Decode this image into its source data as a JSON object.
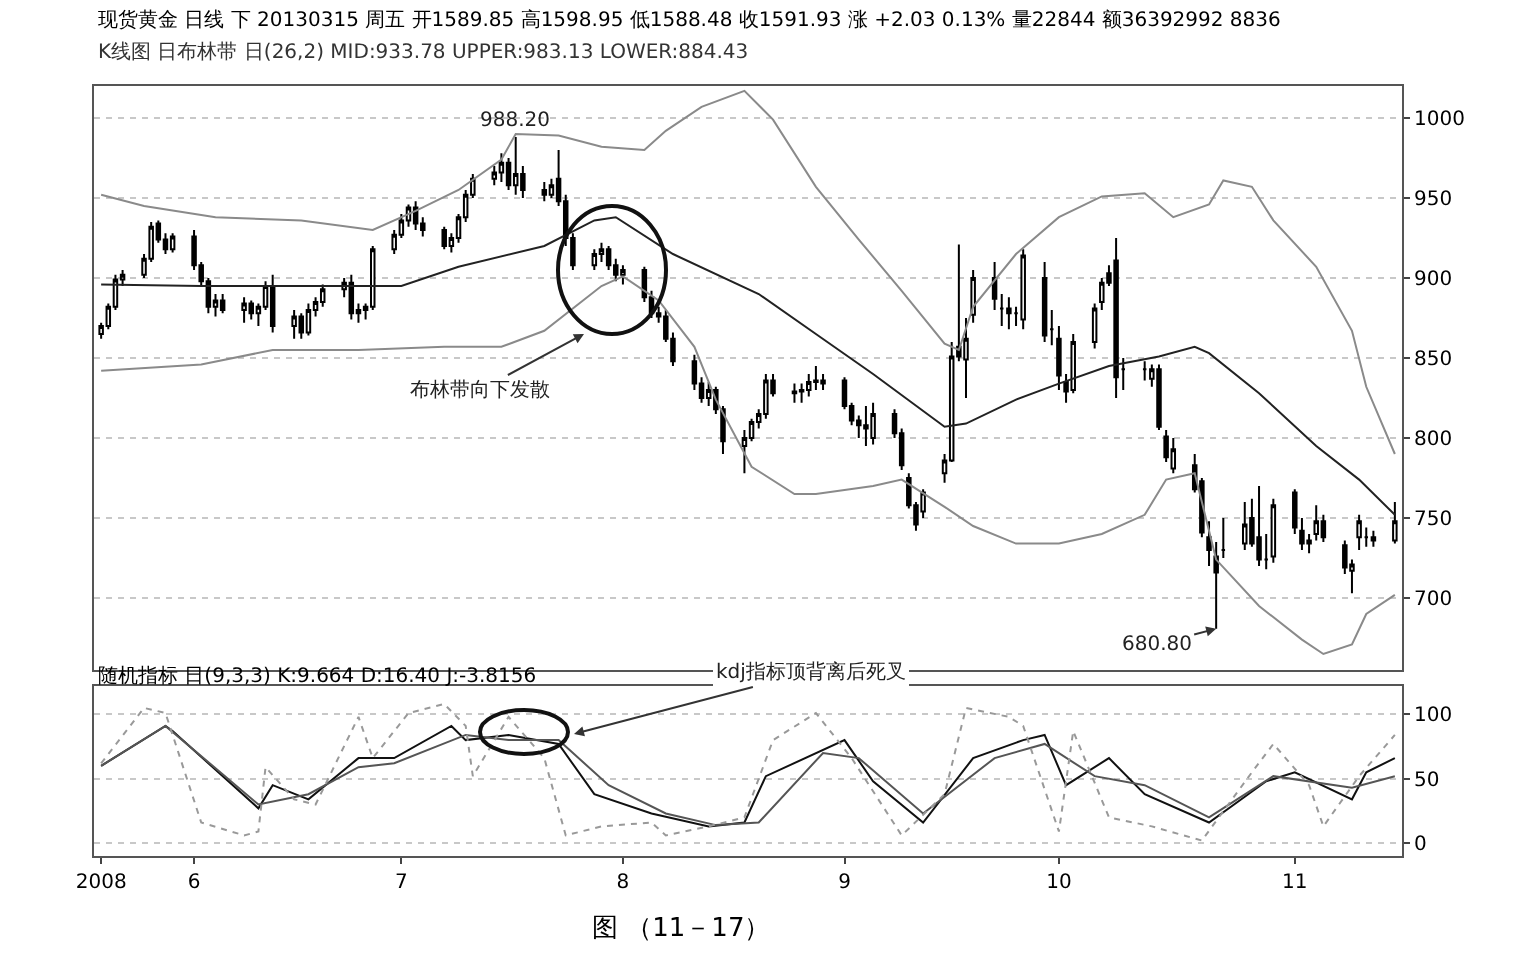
{
  "chart_data": [
    {
      "type": "candlestick",
      "title": "现货黄金 日线 下 20130315 周五 开1589.85 高1598.95 低1588.48 收1591.93 涨 +2.03 0.13% 量22844 额36392992 8836",
      "subtitle": "K线图 日布林带 日(26,2) MID:933.78 UPPER:983.13 LOWER:884.43",
      "x": [
        "2008-05-20",
        "2008-05-21",
        "2008-05-22",
        "2008-05-23",
        "2008-05-26",
        "2008-05-27",
        "2008-05-28",
        "2008-05-29",
        "2008-05-30",
        "2008-06-02",
        "2008-06-03",
        "2008-06-04",
        "2008-06-05",
        "2008-06-06",
        "2008-06-09",
        "2008-06-10",
        "2008-06-11",
        "2008-06-12",
        "2008-06-13",
        "2008-06-16",
        "2008-06-17",
        "2008-06-18",
        "2008-06-19",
        "2008-06-20",
        "2008-06-23",
        "2008-06-24",
        "2008-06-25",
        "2008-06-26",
        "2008-06-27",
        "2008-06-30",
        "2008-07-01",
        "2008-07-02",
        "2008-07-03",
        "2008-07-04",
        "2008-07-07",
        "2008-07-08",
        "2008-07-09",
        "2008-07-10",
        "2008-07-11",
        "2008-07-14",
        "2008-07-15",
        "2008-07-16",
        "2008-07-17",
        "2008-07-18",
        "2008-07-21",
        "2008-07-22",
        "2008-07-23",
        "2008-07-24",
        "2008-07-25",
        "2008-07-28",
        "2008-07-29",
        "2008-07-30",
        "2008-07-31",
        "2008-08-01",
        "2008-08-04",
        "2008-08-05",
        "2008-08-06",
        "2008-08-07",
        "2008-08-08",
        "2008-08-11",
        "2008-08-12",
        "2008-08-13",
        "2008-08-14",
        "2008-08-15",
        "2008-08-18",
        "2008-08-19",
        "2008-08-20",
        "2008-08-21",
        "2008-08-22",
        "2008-08-25",
        "2008-08-26",
        "2008-08-27",
        "2008-08-28",
        "2008-08-29",
        "2008-09-01",
        "2008-09-02",
        "2008-09-03",
        "2008-09-04",
        "2008-09-05",
        "2008-09-08",
        "2008-09-09",
        "2008-09-10",
        "2008-09-11",
        "2008-09-12",
        "2008-09-15",
        "2008-09-16",
        "2008-09-17",
        "2008-09-18",
        "2008-09-19",
        "2008-09-22",
        "2008-09-23",
        "2008-09-24",
        "2008-09-25",
        "2008-09-26",
        "2008-09-29",
        "2008-09-30",
        "2008-10-01",
        "2008-10-02",
        "2008-10-03",
        "2008-10-06",
        "2008-10-07",
        "2008-10-08",
        "2008-10-09",
        "2008-10-10",
        "2008-10-13",
        "2008-10-14",
        "2008-10-15",
        "2008-10-16",
        "2008-10-17",
        "2008-10-20",
        "2008-10-21",
        "2008-10-22",
        "2008-10-23",
        "2008-10-24",
        "2008-10-27",
        "2008-10-28",
        "2008-10-29",
        "2008-10-30",
        "2008-10-31",
        "2008-11-03",
        "2008-11-04",
        "2008-11-05",
        "2008-11-06",
        "2008-11-07",
        "2008-11-10",
        "2008-11-11",
        "2008-11-12",
        "2008-11-13",
        "2008-11-14",
        "2008-11-17"
      ],
      "ohlc": [
        [
          865,
          872,
          862,
          870
        ],
        [
          870,
          884,
          868,
          882
        ],
        [
          882,
          902,
          880,
          899
        ],
        [
          899,
          905,
          895,
          902
        ],
        [
          902,
          915,
          900,
          912
        ],
        [
          912,
          935,
          910,
          932
        ],
        [
          934,
          936,
          922,
          924
        ],
        [
          924,
          928,
          915,
          918
        ],
        [
          918,
          928,
          916,
          926
        ],
        [
          926,
          930,
          905,
          908
        ],
        [
          908,
          910,
          895,
          898
        ],
        [
          898,
          900,
          878,
          882
        ],
        [
          882,
          890,
          876,
          886
        ],
        [
          886,
          890,
          878,
          880
        ],
        [
          880,
          888,
          872,
          884
        ],
        [
          884,
          886,
          874,
          878
        ],
        [
          878,
          884,
          870,
          882
        ],
        [
          882,
          898,
          880,
          895
        ],
        [
          895,
          902,
          866,
          870
        ],
        [
          870,
          880,
          862,
          876
        ],
        [
          876,
          878,
          862,
          866
        ],
        [
          866,
          884,
          864,
          880
        ],
        [
          880,
          888,
          876,
          885
        ],
        [
          885,
          896,
          882,
          893
        ],
        [
          893,
          900,
          888,
          897
        ],
        [
          897,
          902,
          874,
          878
        ],
        [
          878,
          884,
          872,
          880
        ],
        [
          880,
          884,
          874,
          882
        ],
        [
          882,
          920,
          880,
          918
        ],
        [
          918,
          930,
          915,
          927
        ],
        [
          927,
          940,
          925,
          936
        ],
        [
          936,
          946,
          932,
          944
        ],
        [
          944,
          948,
          930,
          934
        ],
        [
          934,
          938,
          926,
          930
        ],
        [
          930,
          932,
          918,
          920
        ],
        [
          920,
          928,
          916,
          925
        ],
        [
          925,
          940,
          922,
          938
        ],
        [
          938,
          955,
          935,
          952
        ],
        [
          952,
          965,
          950,
          962
        ],
        [
          962,
          970,
          958,
          966
        ],
        [
          966,
          978,
          960,
          972
        ],
        [
          972,
          975,
          955,
          958
        ],
        [
          958,
          988.2,
          952,
          965
        ],
        [
          965,
          970,
          950,
          955
        ],
        [
          955,
          960,
          948,
          952
        ],
        [
          952,
          962,
          950,
          958
        ],
        [
          962,
          980,
          945,
          948
        ],
        [
          948,
          952,
          920,
          925
        ],
        [
          925,
          928,
          905,
          908
        ],
        [
          908,
          918,
          905,
          915
        ],
        [
          915,
          922,
          910,
          918
        ],
        [
          918,
          920,
          905,
          908
        ],
        [
          908,
          912,
          898,
          902
        ],
        [
          902,
          908,
          896,
          905
        ],
        [
          905,
          907,
          885,
          888
        ],
        [
          888,
          892,
          875,
          878
        ],
        [
          878,
          882,
          872,
          876
        ],
        [
          876,
          880,
          860,
          862
        ],
        [
          862,
          866,
          845,
          848
        ],
        [
          848,
          852,
          830,
          834
        ],
        [
          834,
          838,
          822,
          825
        ],
        [
          825,
          835,
          820,
          830
        ],
        [
          830,
          832,
          815,
          818
        ],
        [
          818,
          820,
          790,
          798
        ],
        [
          795,
          805,
          778,
          800
        ],
        [
          800,
          812,
          798,
          810
        ],
        [
          810,
          818,
          806,
          815
        ],
        [
          815,
          840,
          812,
          836
        ],
        [
          836,
          840,
          826,
          828
        ],
        [
          828,
          834,
          822,
          829
        ],
        [
          829,
          834,
          822,
          830
        ],
        [
          830,
          840,
          826,
          835
        ],
        [
          835,
          845,
          830,
          836
        ],
        [
          836,
          840,
          830,
          834
        ],
        [
          836,
          838,
          818,
          820
        ],
        [
          820,
          822,
          808,
          811
        ],
        [
          811,
          814,
          800,
          808
        ],
        [
          808,
          820,
          795,
          806
        ],
        [
          800,
          822,
          796,
          815
        ],
        [
          815,
          818,
          800,
          803
        ],
        [
          803,
          806,
          780,
          783
        ],
        [
          775,
          778,
          756,
          758
        ],
        [
          758,
          760,
          742,
          746
        ],
        [
          754,
          768,
          750,
          766
        ],
        [
          778,
          790,
          772,
          786
        ],
        [
          786,
          860,
          785,
          851
        ],
        [
          857,
          921,
          848,
          851
        ],
        [
          849,
          875,
          825,
          862
        ],
        [
          877,
          905,
          872,
          900
        ],
        [
          900,
          910,
          880,
          887
        ],
        [
          881,
          890,
          870,
          881
        ],
        [
          881,
          888,
          868,
          878
        ],
        [
          878,
          882,
          870,
          878
        ],
        [
          874,
          918,
          868,
          914
        ],
        [
          900,
          910,
          860,
          864
        ],
        [
          868,
          880,
          858,
          868
        ],
        [
          862,
          870,
          830,
          839
        ],
        [
          835,
          840,
          822,
          829
        ],
        [
          830,
          865,
          828,
          860
        ],
        [
          860,
          884,
          856,
          881
        ],
        [
          885,
          900,
          880,
          897
        ],
        [
          903,
          908,
          895,
          897
        ],
        [
          911,
          925,
          825,
          838
        ],
        [
          843,
          850,
          830,
          843
        ],
        [
          843,
          848,
          836,
          843
        ],
        [
          837,
          846,
          832,
          843
        ],
        [
          843,
          846,
          805,
          807
        ],
        [
          801,
          805,
          785,
          788
        ],
        [
          781,
          800,
          778,
          793
        ],
        [
          783,
          790,
          766,
          768
        ],
        [
          773,
          775,
          738,
          741
        ],
        [
          738,
          748,
          720,
          730
        ],
        [
          726,
          735,
          680.8,
          716
        ],
        [
          730,
          750,
          725,
          730
        ],
        [
          734,
          760,
          730,
          746
        ],
        [
          750,
          762,
          732,
          734
        ],
        [
          738,
          770,
          720,
          724
        ],
        [
          724,
          740,
          718,
          724
        ],
        [
          726,
          762,
          722,
          758
        ],
        [
          766,
          768,
          740,
          744
        ],
        [
          742,
          750,
          730,
          734
        ],
        [
          734,
          740,
          728,
          736
        ],
        [
          740,
          758,
          736,
          748
        ],
        [
          748,
          752,
          735,
          738
        ],
        [
          733,
          736,
          715,
          719
        ],
        [
          717,
          724,
          703,
          721
        ],
        [
          738,
          752,
          730,
          748
        ],
        [
          738,
          744,
          732,
          738
        ],
        [
          736,
          742,
          732,
          738
        ],
        [
          736,
          760,
          734,
          748
        ]
      ],
      "series": [
        {
          "type": "line",
          "color": "#8a8a8a",
          "x": [
            "2008-05-20",
            "2008-05-26",
            "2008-06-05",
            "2008-06-17",
            "2008-06-27",
            "2008-07-03",
            "2008-07-09",
            "2008-07-15",
            "2008-07-17",
            "2008-07-23",
            "2008-07-29",
            "2008-08-04",
            "2008-08-07",
            "2008-08-12",
            "2008-08-18",
            "2008-08-22",
            "2008-08-28",
            "2008-09-03",
            "2008-09-09",
            "2008-09-15",
            "2008-09-17",
            "2008-09-19",
            "2008-09-25",
            "2008-10-01",
            "2008-10-07",
            "2008-10-13",
            "2008-10-17",
            "2008-10-22",
            "2008-10-24",
            "2008-10-28",
            "2008-10-31",
            "2008-11-06",
            "2008-11-11",
            "2008-11-13",
            "2008-11-17"
          ],
          "values": [
            952,
            945,
            938,
            936,
            930,
            942,
            955,
            974,
            990,
            989,
            982,
            980,
            992,
            1007,
            1017,
            999,
            957,
            924,
            892,
            859,
            855,
            882,
            915,
            938,
            951,
            953,
            938,
            946,
            961,
            957,
            936,
            907,
            867,
            832,
            790
          ]
        },
        {
          "type": "line",
          "color": "#222222",
          "x": [
            "2008-05-20",
            "2008-06-03",
            "2008-06-17",
            "2008-07-01",
            "2008-07-09",
            "2008-07-21",
            "2008-07-28",
            "2008-07-31",
            "2008-08-08",
            "2008-08-20",
            "2008-08-28",
            "2008-09-05",
            "2008-09-15",
            "2008-09-18",
            "2008-09-25",
            "2008-10-01",
            "2008-10-08",
            "2008-10-15",
            "2008-10-20",
            "2008-10-22",
            "2008-10-29",
            "2008-11-06",
            "2008-11-12",
            "2008-11-17"
          ],
          "values": [
            896,
            895,
            895,
            895,
            907,
            920,
            936,
            938,
            915,
            890,
            865,
            840,
            807,
            809,
            824,
            834,
            845,
            851,
            857,
            853,
            828,
            795,
            774,
            752
          ]
        },
        {
          "type": "line",
          "color": "#8a8a8a",
          "x": [
            "2008-05-20",
            "2008-06-03",
            "2008-06-13",
            "2008-06-25",
            "2008-07-07",
            "2008-07-15",
            "2008-07-21",
            "2008-07-29",
            "2008-08-01",
            "2008-08-06",
            "2008-08-11",
            "2008-08-14",
            "2008-08-19",
            "2008-08-25",
            "2008-08-28",
            "2008-09-05",
            "2008-09-09",
            "2008-09-15",
            "2008-09-19",
            "2008-09-25",
            "2008-10-01",
            "2008-10-07",
            "2008-10-13",
            "2008-10-16",
            "2008-10-20",
            "2008-10-23",
            "2008-10-29",
            "2008-11-04",
            "2008-11-07",
            "2008-11-11",
            "2008-11-13",
            "2008-11-17"
          ],
          "values": [
            842,
            846,
            855,
            855,
            857,
            857,
            867,
            895,
            901,
            886,
            857,
            824,
            782,
            765,
            765,
            770,
            774,
            757,
            745,
            734,
            734,
            740,
            752,
            774,
            778,
            724,
            695,
            674,
            665,
            671,
            690,
            702
          ]
        }
      ],
      "annotations": [
        {
          "text": "988.20",
          "x": "2008-07-17",
          "y": 988.2
        },
        {
          "text": "680.80",
          "x": "2008-10-23",
          "y": 680.8
        },
        "布林带向下发散"
      ],
      "xlim": [
        "2008-05-19",
        "2008-11-18"
      ],
      "ylim": [
        655,
        1020
      ],
      "yticks": [
        700,
        750,
        800,
        850,
        900,
        950,
        1000
      ],
      "grid": "y",
      "tick_labels": "y"
    },
    {
      "type": "line",
      "title": "随机指标 日(9,3,3) K:9.664 D:16.40 J:-3.8156",
      "series": [
        {
          "color": "#111111",
          "x": [
            "2008-05-20",
            "2008-05-29",
            "2008-05-30",
            "2008-06-11",
            "2008-06-13",
            "2008-06-18",
            "2008-06-25",
            "2008-06-30",
            "2008-07-08",
            "2008-07-10",
            "2008-07-16",
            "2008-07-23",
            "2008-07-28",
            "2008-08-05",
            "2008-08-13",
            "2008-08-18",
            "2008-08-21",
            "2008-09-01",
            "2008-09-05",
            "2008-09-12",
            "2008-09-19",
            "2008-09-26",
            "2008-09-29",
            "2008-10-02",
            "2008-10-08",
            "2008-10-13",
            "2008-10-22",
            "2008-10-30",
            "2008-11-03",
            "2008-11-11",
            "2008-11-13",
            "2008-11-17"
          ],
          "values": [
            60,
            91,
            87,
            27,
            45,
            34,
            66,
            66,
            91,
            80,
            84,
            77,
            38,
            23,
            13,
            16,
            52,
            80,
            48,
            16,
            66,
            80,
            84,
            45,
            66,
            38,
            16,
            48,
            55,
            34,
            55,
            66
          ]
        },
        {
          "color": "#555555",
          "x": [
            "2008-05-20",
            "2008-05-29",
            "2008-06-11",
            "2008-06-18",
            "2008-06-25",
            "2008-06-30",
            "2008-07-10",
            "2008-07-16",
            "2008-07-23",
            "2008-07-30",
            "2008-08-07",
            "2008-08-14",
            "2008-08-20",
            "2008-08-29",
            "2008-09-03",
            "2008-09-12",
            "2008-09-22",
            "2008-09-29",
            "2008-10-06",
            "2008-10-13",
            "2008-10-22",
            "2008-10-31",
            "2008-11-11",
            "2008-11-17"
          ],
          "values": [
            60,
            91,
            30,
            38,
            59,
            62,
            84,
            80,
            80,
            45,
            23,
            14,
            16,
            70,
            66,
            23,
            66,
            77,
            52,
            45,
            20,
            52,
            43,
            52
          ]
        },
        {
          "color": "#999999",
          "line_style": "dotted",
          "x": [
            "2008-05-20",
            "2008-05-26",
            "2008-05-29",
            "2008-06-03",
            "2008-06-09",
            "2008-06-11",
            "2008-06-12",
            "2008-06-16",
            "2008-06-19",
            "2008-06-25",
            "2008-06-27",
            "2008-07-02",
            "2008-07-07",
            "2008-07-10",
            "2008-07-11",
            "2008-07-16",
            "2008-07-21",
            "2008-07-24",
            "2008-07-29",
            "2008-08-05",
            "2008-08-07",
            "2008-08-13",
            "2008-08-18",
            "2008-08-22",
            "2008-08-28",
            "2008-09-02",
            "2008-09-09",
            "2008-09-15",
            "2008-09-18",
            "2008-09-24",
            "2008-09-26",
            "2008-10-01",
            "2008-10-03",
            "2008-10-08",
            "2008-10-14",
            "2008-10-21",
            "2008-10-28",
            "2008-10-31",
            "2008-11-05",
            "2008-11-07",
            "2008-11-12",
            "2008-11-17"
          ],
          "values": [
            62,
            105,
            101,
            16,
            6,
            9,
            59,
            34,
            30,
            98,
            66,
            101,
            108,
            91,
            52,
            98,
            66,
            6,
            13,
            16,
            6,
            13,
            20,
            80,
            101,
            66,
            6,
            38,
            105,
            98,
            91,
            9,
            87,
            20,
            13,
            2,
            55,
            77,
            45,
            13,
            52,
            84
          ]
        }
      ],
      "annotations": [
        "kdj指标顶背离后死叉",
        "图 （11－17）"
      ],
      "xlim": [
        "2008-05-19",
        "2008-11-18"
      ],
      "xticks": [
        {
          "value": "2008-05-20",
          "label": "2008"
        },
        {
          "value": "2008-06-02",
          "label": "6"
        },
        {
          "value": "2008-07-01",
          "label": "7"
        },
        {
          "value": "2008-08-01",
          "label": "8"
        },
        {
          "value": "2008-09-01",
          "label": "9"
        },
        {
          "value": "2008-10-01",
          "label": "10"
        },
        {
          "value": "2008-11-03",
          "label": "11"
        }
      ],
      "ylim": [
        -10,
        122
      ],
      "yticks": [
        0,
        50,
        100
      ],
      "grid": "y"
    }
  ]
}
